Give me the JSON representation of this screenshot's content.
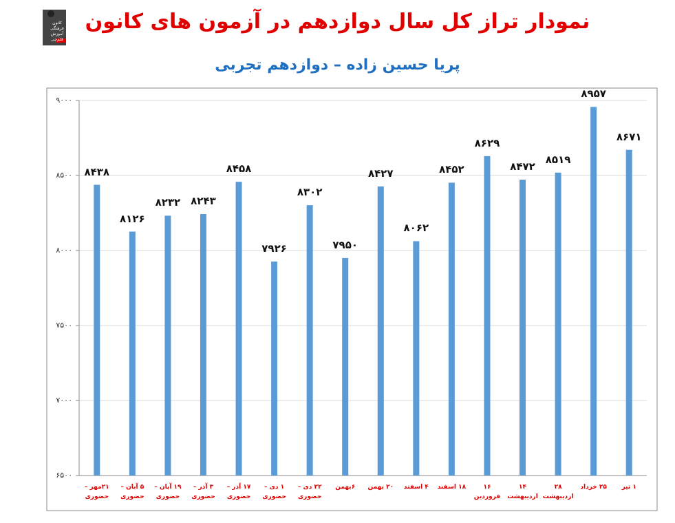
{
  "chart_data": {
    "type": "bar",
    "title": "نمودار تراز کل سال دوازدهم در آزمون های کانون",
    "subtitle": "پریا حسین زاده – دوازدهم تجربی",
    "logo_text": "کانون فرهنگی آموزش قلم‌چی",
    "categories": [
      "۲۱مهر –\nحضوری",
      "۵ آبان –\nحضوری",
      "۱۹ آبان –\nحضوری",
      "۳ آذر –\nحضوری",
      "۱۷ آذر –\nحضوری",
      "۱ دی –\nحضوری",
      "۲۲ دی –\nحضوری",
      "۶بهمن",
      "۲۰ بهمن",
      "۴ اسفند",
      "۱۸ اسفند",
      "۱۶ فروردین",
      "۱۴ اردیبهشت",
      "۲۸ اردیبهشت",
      "۲۵ خرداد",
      "۱ تیر"
    ],
    "values": [
      8438,
      8126,
      8232,
      8243,
      8458,
      7926,
      8302,
      7950,
      8427,
      8062,
      8452,
      8629,
      8472,
      8519,
      8957,
      8671
    ],
    "value_labels": [
      "۸۴۳۸",
      "۸۱۲۶",
      "۸۲۳۲",
      "۸۲۴۳",
      "۸۴۵۸",
      "۷۹۲۶",
      "۸۳۰۲",
      "۷۹۵۰",
      "۸۴۲۷",
      "۸۰۶۲",
      "۸۴۵۲",
      "۸۶۲۹",
      "۸۴۷۲",
      "۸۵۱۹",
      "۸۹۵۷",
      "۸۶۷۱"
    ],
    "color": "#5b9bd5",
    "ylim": [
      6500,
      9000
    ],
    "yticks": [
      {
        "value": 6500,
        "label": "۶۵۰۰"
      },
      {
        "value": 7000,
        "label": "۷۰۰۰"
      },
      {
        "value": 7500,
        "label": "۷۵۰۰"
      },
      {
        "value": 8000,
        "label": "۸۰۰۰"
      },
      {
        "value": 8500,
        "label": "۸۵۰۰"
      },
      {
        "value": 9000,
        "label": "۹۰۰۰"
      }
    ],
    "grid": true
  }
}
